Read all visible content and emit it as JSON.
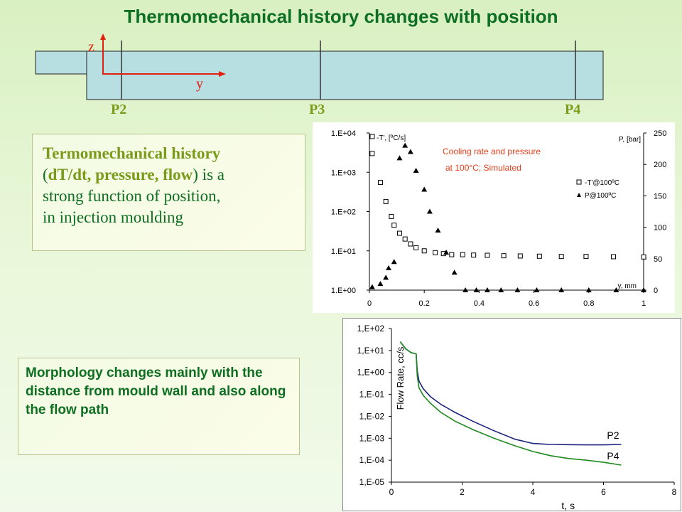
{
  "title": "Thermomechanical history changes with position",
  "mould": {
    "axis_z": "z",
    "axis_y": "y",
    "positions": [
      "P2",
      "P3",
      "P4"
    ]
  },
  "box1": {
    "line1": "Termomechanical history",
    "open_paren": "(",
    "bold_text": "dT/dt, pressure, flow",
    "after_bold": ") is a",
    "line3": "strong function of position,",
    "line4": "in injection moulding"
  },
  "box2": {
    "text": "Morphology changes mainly with the distance from mould wall and also along the flow path"
  },
  "colors": {
    "title": "#0e6e22",
    "p_labels": "#7a9a1a",
    "annotation": "#e8401c",
    "series_p2": "#1a237e",
    "series_p4": "#1d8a1d"
  },
  "chart_data": [
    {
      "type": "scatter",
      "annotation": [
        "Cooling rate and pressure",
        "at 100°C; Simulated"
      ],
      "xlabel": "y, mm",
      "ylabel_left": "-T', [ºC/s]",
      "ylabel_right": "P, [bar]",
      "x_ticks": [
        "0",
        "0.2",
        "0.4",
        "0.6",
        "0.8",
        "1"
      ],
      "y_left_ticks": [
        "1.E+00",
        "1.E+01",
        "1.E+02",
        "1.E+03",
        "1.E+04"
      ],
      "y_right_ticks": [
        "0",
        "50",
        "100",
        "150",
        "200",
        "250"
      ],
      "xlim": [
        0,
        1
      ],
      "ylim_left_log10": [
        0,
        4
      ],
      "ylim_right": [
        0,
        250
      ],
      "legend": [
        "-T'@100ºC",
        "P@100ºC"
      ],
      "series": [
        {
          "name": "-T'@100ºC",
          "marker": "square",
          "axis": "left",
          "x": [
            0.01,
            0.04,
            0.06,
            0.08,
            0.09,
            0.11,
            0.13,
            0.15,
            0.17,
            0.2,
            0.24,
            0.27,
            0.3,
            0.34,
            0.38,
            0.43,
            0.49,
            0.55,
            0.62,
            0.7,
            0.79,
            0.89,
            1.0
          ],
          "y": [
            3000,
            550,
            180,
            75,
            45,
            28,
            20,
            15,
            12,
            10,
            9,
            8.5,
            8,
            8,
            7.8,
            7.7,
            7.5,
            7.4,
            7.3,
            7.2,
            7.2,
            7.1,
            7.0
          ]
        },
        {
          "name": "P@100ºC",
          "marker": "triangle",
          "axis": "right",
          "x": [
            0.01,
            0.04,
            0.06,
            0.07,
            0.09,
            0.11,
            0.13,
            0.15,
            0.17,
            0.2,
            0.22,
            0.25,
            0.28,
            0.31,
            0.35,
            0.39,
            0.43,
            0.48,
            0.54,
            0.61,
            0.7,
            0.8,
            0.9,
            1.0
          ],
          "y": [
            5,
            10,
            20,
            35,
            45,
            210,
            230,
            220,
            190,
            160,
            125,
            95,
            60,
            28,
            0,
            0,
            0,
            0,
            0,
            0,
            0,
            0,
            0,
            0
          ]
        }
      ]
    },
    {
      "type": "line",
      "xlabel": "t, s",
      "ylabel": "Flow Rate, cc/s",
      "x_ticks": [
        "0",
        "2",
        "4",
        "6",
        "8"
      ],
      "y_ticks": [
        "1,E-05",
        "1,E-04",
        "1,E-03",
        "1,E-02",
        "1,E-01",
        "1,E+00",
        "1,E+01",
        "1,E+02"
      ],
      "xlim": [
        0,
        8
      ],
      "ylim_log10": [
        -5,
        2
      ],
      "series": [
        {
          "name": "P2",
          "x": [
            0.25,
            0.4,
            0.55,
            0.7,
            0.73,
            0.78,
            0.9,
            1.1,
            1.4,
            1.8,
            2.3,
            2.9,
            3.5,
            4.0,
            4.5,
            5.0,
            5.5,
            6.0,
            6.5
          ],
          "y": [
            25,
            12,
            8,
            7,
            1.2,
            0.4,
            0.18,
            0.08,
            0.035,
            0.015,
            0.006,
            0.0022,
            0.0009,
            0.00058,
            0.00052,
            0.00051,
            0.0005,
            0.0005,
            0.00052
          ]
        },
        {
          "name": "P4",
          "x": [
            0.25,
            0.4,
            0.55,
            0.7,
            0.73,
            0.78,
            0.9,
            1.1,
            1.4,
            1.8,
            2.3,
            2.9,
            3.5,
            4.0,
            4.5,
            5.0,
            5.5,
            6.0,
            6.5
          ],
          "y": [
            25,
            12,
            8,
            7,
            0.7,
            0.2,
            0.09,
            0.04,
            0.015,
            0.006,
            0.0025,
            0.001,
            0.00045,
            0.00025,
            0.00016,
            0.00012,
            0.0001,
            8e-05,
            6e-05
          ]
        }
      ]
    }
  ]
}
